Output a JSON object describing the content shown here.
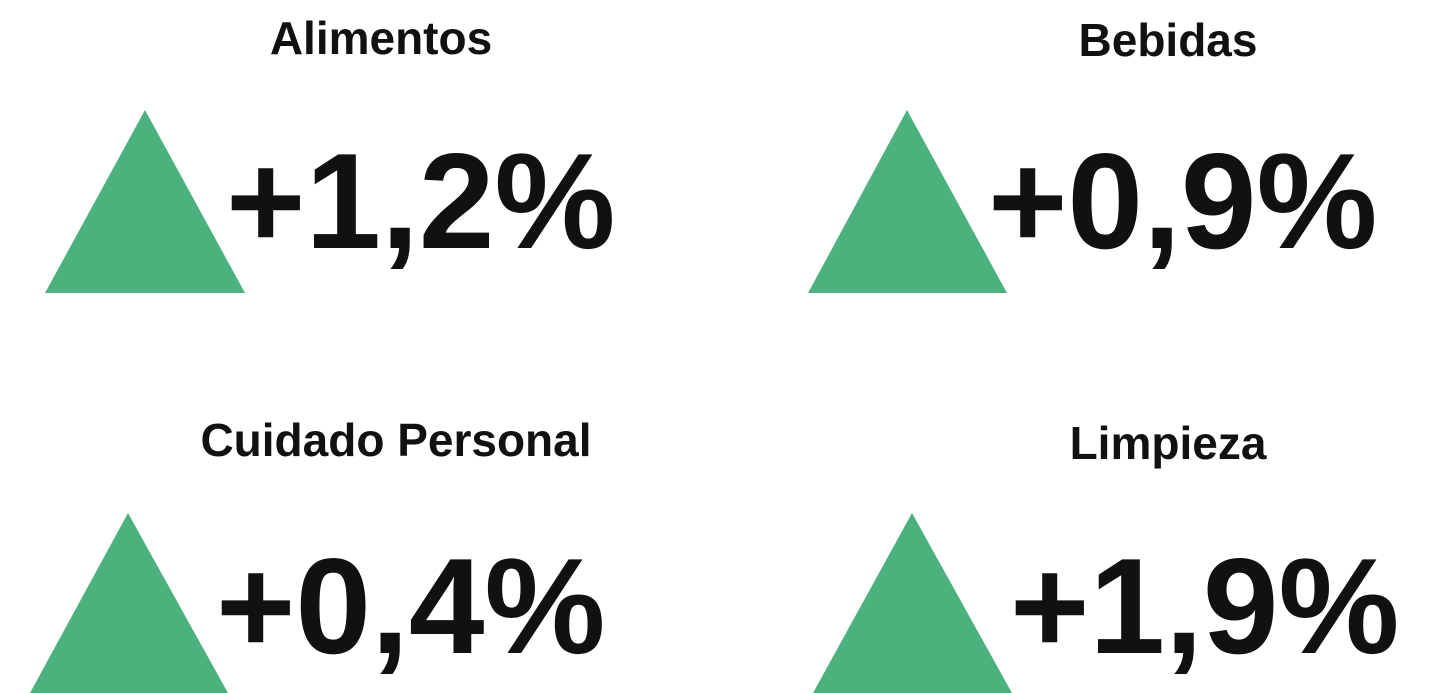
{
  "items": [
    {
      "title": "Alimentos",
      "value": "+1,2%"
    },
    {
      "title": "Bebidas",
      "value": "+0,9%"
    },
    {
      "title": "Cuidado Personal",
      "value": "+0,4%"
    },
    {
      "title": "Limpieza",
      "value": "+1,9%"
    }
  ]
}
